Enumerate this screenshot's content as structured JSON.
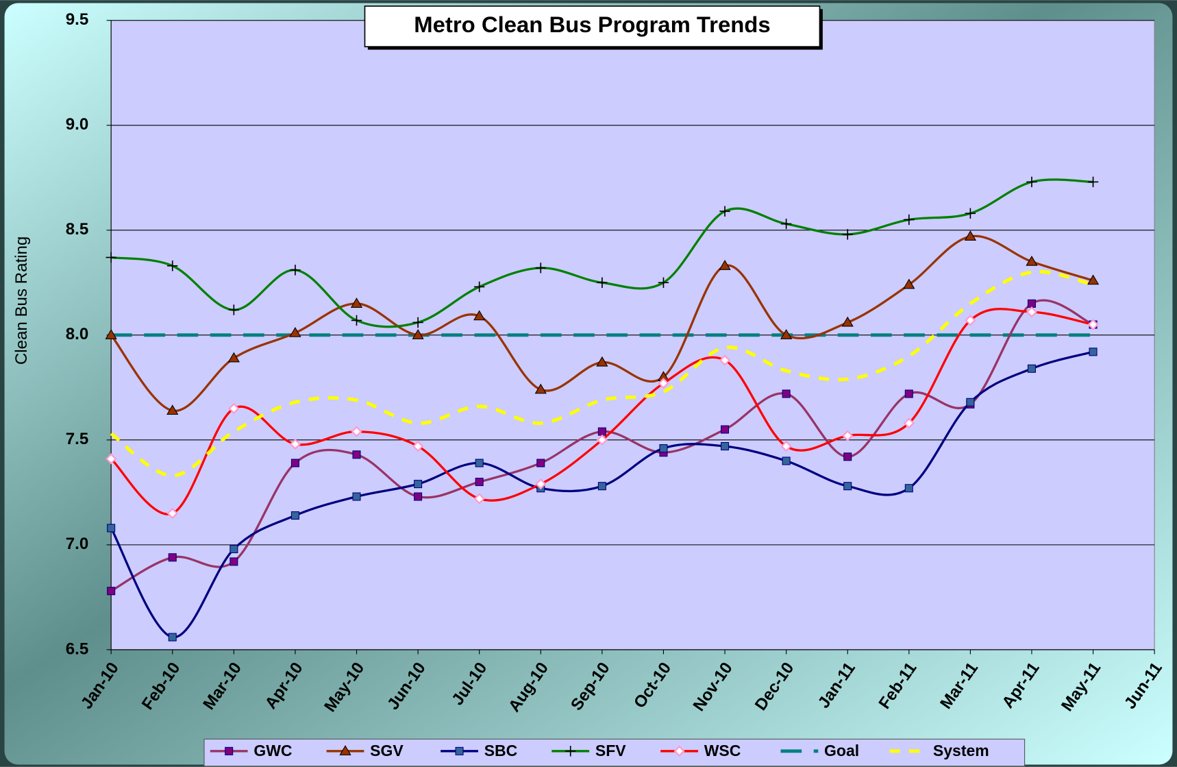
{
  "chart_data": {
    "type": "line",
    "title": "Metro Clean Bus Program Trends",
    "y_label": "Clean Bus Rating",
    "categories": [
      "Jan-10",
      "Feb-10",
      "Mar-10",
      "Apr-10",
      "May-10",
      "Jun-10",
      "Jul-10",
      "Aug-10",
      "Sep-10",
      "Oct-10",
      "Nov-10",
      "Dec-10",
      "Jan-11",
      "Feb-11",
      "Mar-11",
      "Apr-11",
      "May-11",
      "Jun-11"
    ],
    "ylim": [
      6.5,
      9.5
    ],
    "yticks": [
      6.5,
      {
        "value": 7.0,
        "label": "7.0"
      },
      7.5,
      {
        "value": 8.0,
        "label": "8.0"
      },
      8.5,
      {
        "value": 9.0,
        "label": "9.0"
      },
      9.5
    ],
    "grid": true,
    "legend": "bottom",
    "series": [
      {
        "name": "GWC",
        "color": "#993366",
        "marker_color": "#800080",
        "marker": "square",
        "dash": "solid",
        "values": [
          6.78,
          6.94,
          6.92,
          7.39,
          7.43,
          7.23,
          7.3,
          7.39,
          7.54,
          7.44,
          7.55,
          7.72,
          7.42,
          7.72,
          7.67,
          8.15,
          8.05,
          null
        ]
      },
      {
        "name": "SGV",
        "color": "#993300",
        "marker_color": "#993300",
        "marker": "triangle",
        "dash": "solid",
        "values": [
          8.0,
          7.64,
          7.89,
          8.01,
          8.15,
          8.0,
          8.09,
          7.74,
          7.87,
          7.8,
          8.33,
          8.0,
          8.06,
          8.24,
          8.47,
          8.35,
          8.26,
          null
        ]
      },
      {
        "name": "SBC",
        "color": "#000080",
        "marker_color": "#336699",
        "marker": "square",
        "dash": "solid",
        "values": [
          7.08,
          6.56,
          6.98,
          7.14,
          7.23,
          7.29,
          7.39,
          7.27,
          7.28,
          7.46,
          7.47,
          7.4,
          7.28,
          7.27,
          7.68,
          7.84,
          7.92,
          null
        ]
      },
      {
        "name": "SFV",
        "color": "#008000",
        "marker_color": "#00ff00",
        "marker": "plus",
        "dash": "solid",
        "values": [
          8.37,
          8.33,
          8.12,
          8.31,
          8.07,
          8.06,
          8.23,
          8.32,
          8.25,
          8.25,
          8.59,
          8.53,
          8.48,
          8.55,
          8.58,
          8.73,
          8.73,
          null
        ]
      },
      {
        "name": "WSC",
        "color": "#ff0000",
        "marker_color": "#ff99cc",
        "marker": "diamond",
        "dash": "solid",
        "values": [
          7.41,
          7.15,
          7.65,
          7.48,
          7.54,
          7.47,
          7.22,
          7.29,
          7.5,
          7.77,
          7.88,
          7.47,
          7.52,
          7.58,
          8.07,
          8.11,
          8.05,
          null
        ]
      },
      {
        "name": "Goal",
        "color": "#008080",
        "marker": "none",
        "dash": "long",
        "values": [
          8.0,
          8.0,
          8.0,
          8.0,
          8.0,
          8.0,
          8.0,
          8.0,
          8.0,
          8.0,
          8.0,
          8.0,
          8.0,
          8.0,
          8.0,
          8.0,
          8.0,
          null
        ]
      },
      {
        "name": "System",
        "color": "#ffff00",
        "marker": "none",
        "dash": "short",
        "values": [
          7.53,
          7.33,
          7.54,
          7.68,
          7.69,
          7.58,
          7.66,
          7.58,
          7.69,
          7.73,
          7.94,
          7.83,
          7.79,
          7.9,
          8.15,
          8.3,
          8.24,
          null
        ]
      }
    ]
  }
}
